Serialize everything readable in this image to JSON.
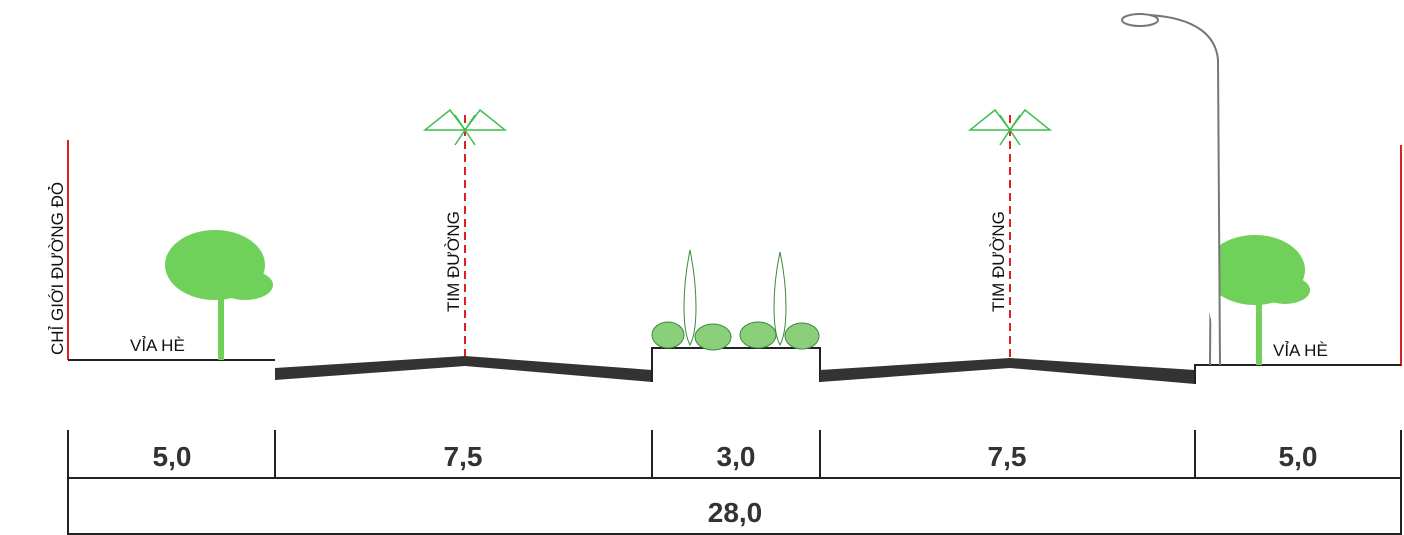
{
  "boundary_label": "CHỈ GIỚI ĐƯỜNG ĐỎ",
  "sidewalk_labels": [
    "VỈA HÈ",
    "VỈA HÈ"
  ],
  "centerline_labels": [
    "TIM ĐƯỜNG",
    "TIM ĐƯỜNG"
  ],
  "dimensions": [
    "5,0",
    "7,5",
    "3,0",
    "7,5",
    "5,0"
  ],
  "total_width": "28,0"
}
